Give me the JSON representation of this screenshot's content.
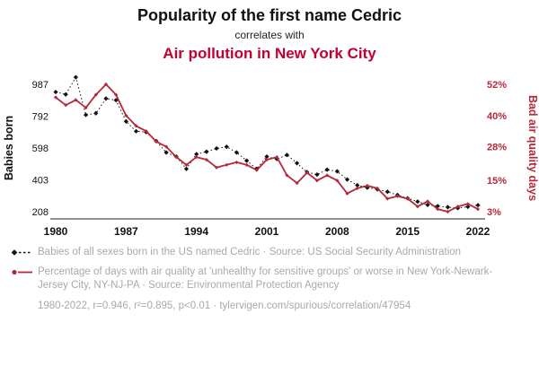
{
  "header": {
    "title": "Popularity of the first name Cedric",
    "connector": "correlates with",
    "subtitle": "Air pollution in New York City"
  },
  "colors": {
    "title_red": "#c3002f",
    "series_red": "#b62938",
    "series_black": "#111111",
    "footnote_gray": "#a9a9a9"
  },
  "chart_data": {
    "type": "line",
    "x": [
      1980,
      1981,
      1982,
      1983,
      1984,
      1985,
      1986,
      1987,
      1988,
      1989,
      1990,
      1991,
      1992,
      1993,
      1994,
      1995,
      1996,
      1997,
      1998,
      1999,
      2000,
      2001,
      2002,
      2003,
      2004,
      2005,
      2006,
      2007,
      2008,
      2009,
      2010,
      2011,
      2012,
      2013,
      2014,
      2015,
      2016,
      2017,
      2018,
      2019,
      2020,
      2021,
      2022
    ],
    "x_ticks": [
      1980,
      1987,
      1994,
      2001,
      2008,
      2015,
      2022
    ],
    "left_axis": {
      "label": "Babies born",
      "ticks": [
        987,
        792,
        598,
        403,
        208
      ],
      "range": [
        208,
        987
      ]
    },
    "right_axis": {
      "label": "Bad air quality days",
      "ticks": [
        "52%",
        "40%",
        "28%",
        "15%",
        "3%"
      ],
      "tick_values": [
        52,
        40,
        28,
        15,
        3
      ],
      "range": [
        3,
        52
      ]
    },
    "series": [
      {
        "name": "Babies of all sexes born in the US named Cedric",
        "axis": "left",
        "values": [
          940,
          925,
          1030,
          800,
          810,
          900,
          890,
          760,
          700,
          695,
          640,
          570,
          545,
          470,
          560,
          575,
          595,
          605,
          570,
          520,
          470,
          545,
          530,
          555,
          505,
          450,
          435,
          465,
          455,
          405,
          370,
          355,
          345,
          330,
          310,
          290,
          270,
          250,
          242,
          236,
          230,
          238,
          248
        ]
      },
      {
        "name": "Percentage of days with bad air quality in New York-Newark-Jersey City",
        "axis": "right",
        "values": [
          47,
          44,
          46,
          43,
          48,
          52,
          48,
          40,
          36,
          34,
          30,
          28,
          24,
          21,
          24,
          23,
          20,
          21,
          22,
          21,
          19,
          23,
          24,
          17,
          14,
          18,
          15,
          17,
          15,
          10,
          12,
          13,
          12,
          8,
          9,
          8,
          5,
          7,
          4,
          3,
          5,
          6,
          4
        ]
      }
    ],
    "legend_position": "bottom",
    "grid": false
  },
  "footnotes": [
    {
      "text": "Babies of all sexes born in the US named Cedric · Source: US Social Security Administration"
    },
    {
      "text": "Percentage of days with air quality at 'unhealthy for sensitive groups' or worse in New York-Newark-Jersey City, NY-NJ-PA · Source: Environmental Protection Agency"
    }
  ],
  "stats_line": "1980-2022, r=0.946, r²=0.895, p<0.01 · tylervigen.com/spurious/correlation/47954"
}
